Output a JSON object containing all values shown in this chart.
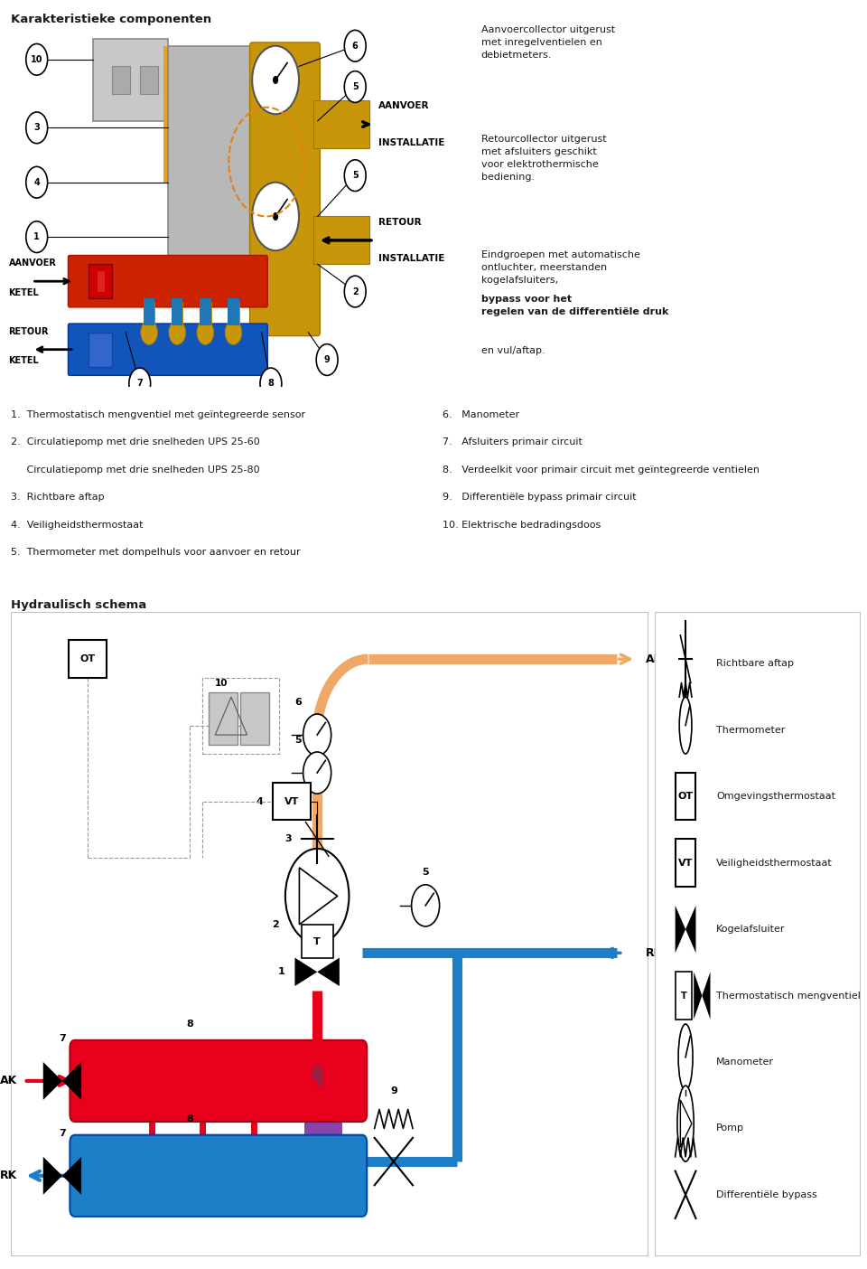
{
  "title_top": "Karakteristieke componenten",
  "title_bottom": "Hydraulisch schema",
  "bg_color": "#ffffff",
  "border_color": "#c0c0c0",
  "text_color": "#1a1a1a",
  "red_color": "#e8001c",
  "blue_color": "#1e7fc8",
  "warm_pipe_color": "#f0a868",
  "gray_color": "#999999",
  "component_list_left": [
    "1.  Thermostatisch mengventiel met geïntegreerde sensor",
    "2.  Circulatiepomp met drie snelheden UPS 25-60",
    "     Circulatiepomp met drie snelheden UPS 25-80",
    "3.  Richtbare aftap",
    "4.  Veiligheidsthermostaat",
    "5.  Thermometer met dompelhuls voor aanvoer en retour"
  ],
  "component_list_right": [
    "6.   Manometer",
    "7.   Afsluiters primair circuit",
    "8.   Verdeelkit voor primair circuit met geïntegreerde ventielen",
    "9.   Differentiële bypass primair circuit",
    "10. Elektrische bedradingsdoos"
  ],
  "legend_items": [
    "Richtbare aftap",
    "Thermometer",
    "Omgevingsthermostaat",
    "Veiligheidsthermostaat",
    "Kogelafsluiter",
    "Thermostatisch mengventiel",
    "Manometer",
    "Pomp",
    "Differentiële bypass"
  ],
  "legend_keys": [
    "richtbare_aftap",
    "thermometer",
    "OT",
    "VT",
    "kogel",
    "therm_mix",
    "manometer",
    "pomp",
    "diff_bypass"
  ],
  "right_text1": "Aanvoercollector uitgerust\nmet inregelventielen en\ndebietmeters.",
  "right_text2": "Retourcollector uitgerust\nmet afsluiters geschikt\nvoor elektrothermische\nbediening.",
  "right_text3a": "Eindgroepen met automatische\nontluchter, meerstanden\nkogelafsluiters, ",
  "right_text3b": "bypass voor het\nregelen van de differentiële druk",
  "right_text3c": "\nen vul/aftap."
}
